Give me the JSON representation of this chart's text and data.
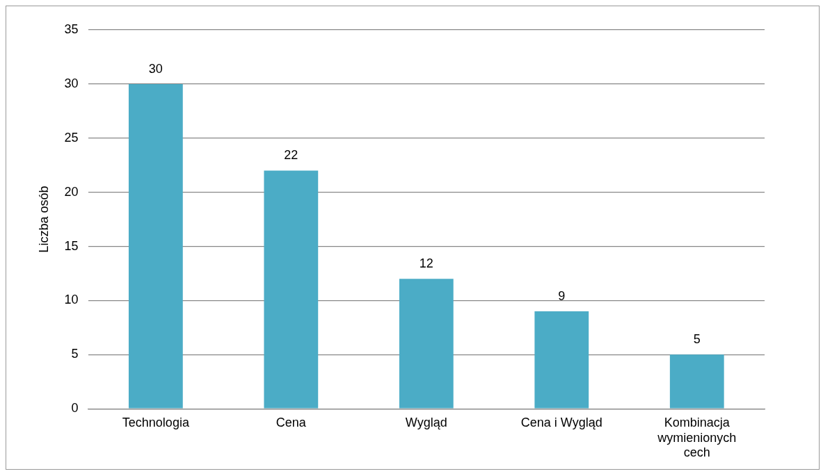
{
  "chart_data": {
    "type": "bar",
    "ylabel": "Liczba osób",
    "categories": [
      "Technologia",
      "Cena",
      "Wygląd",
      "Cena i Wygląd",
      "Kombinacja wymienionych cech"
    ],
    "values": [
      30,
      22,
      12,
      9,
      5
    ],
    "color": "#4bacc6",
    "ylim": [
      0,
      35
    ],
    "yticks": [
      0,
      5,
      10,
      15,
      20,
      25,
      30,
      35
    ],
    "grid": "y",
    "legend": false,
    "data_labels": true
  }
}
